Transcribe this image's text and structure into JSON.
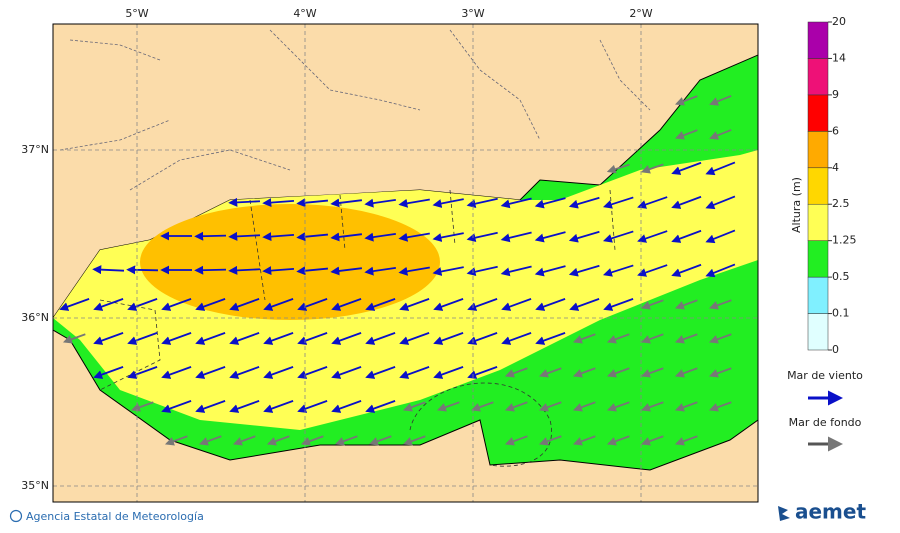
{
  "map": {
    "lon_labels": [
      "5°W",
      "4°W",
      "3°W",
      "2°W"
    ],
    "lat_labels": [
      "37°N",
      "36°N",
      "35°N"
    ],
    "legend": {
      "title": "Altura (m)",
      "levels": [
        0,
        0.1,
        0.5,
        1.25,
        2.5,
        4,
        6,
        9,
        14,
        20
      ],
      "colors": [
        "#e0ffff",
        "#80f0ff",
        "#22ee22",
        "#ffff55",
        "#ffd700",
        "#ffaa00",
        "#ff0000",
        "#ee1177",
        "#aa00aa"
      ]
    },
    "wind_label": "Mar de viento",
    "swell_label": "Mar de fondo"
  },
  "footer": {
    "credit": "Agencia Estatal de Meteorología",
    "logo": "aemet"
  }
}
